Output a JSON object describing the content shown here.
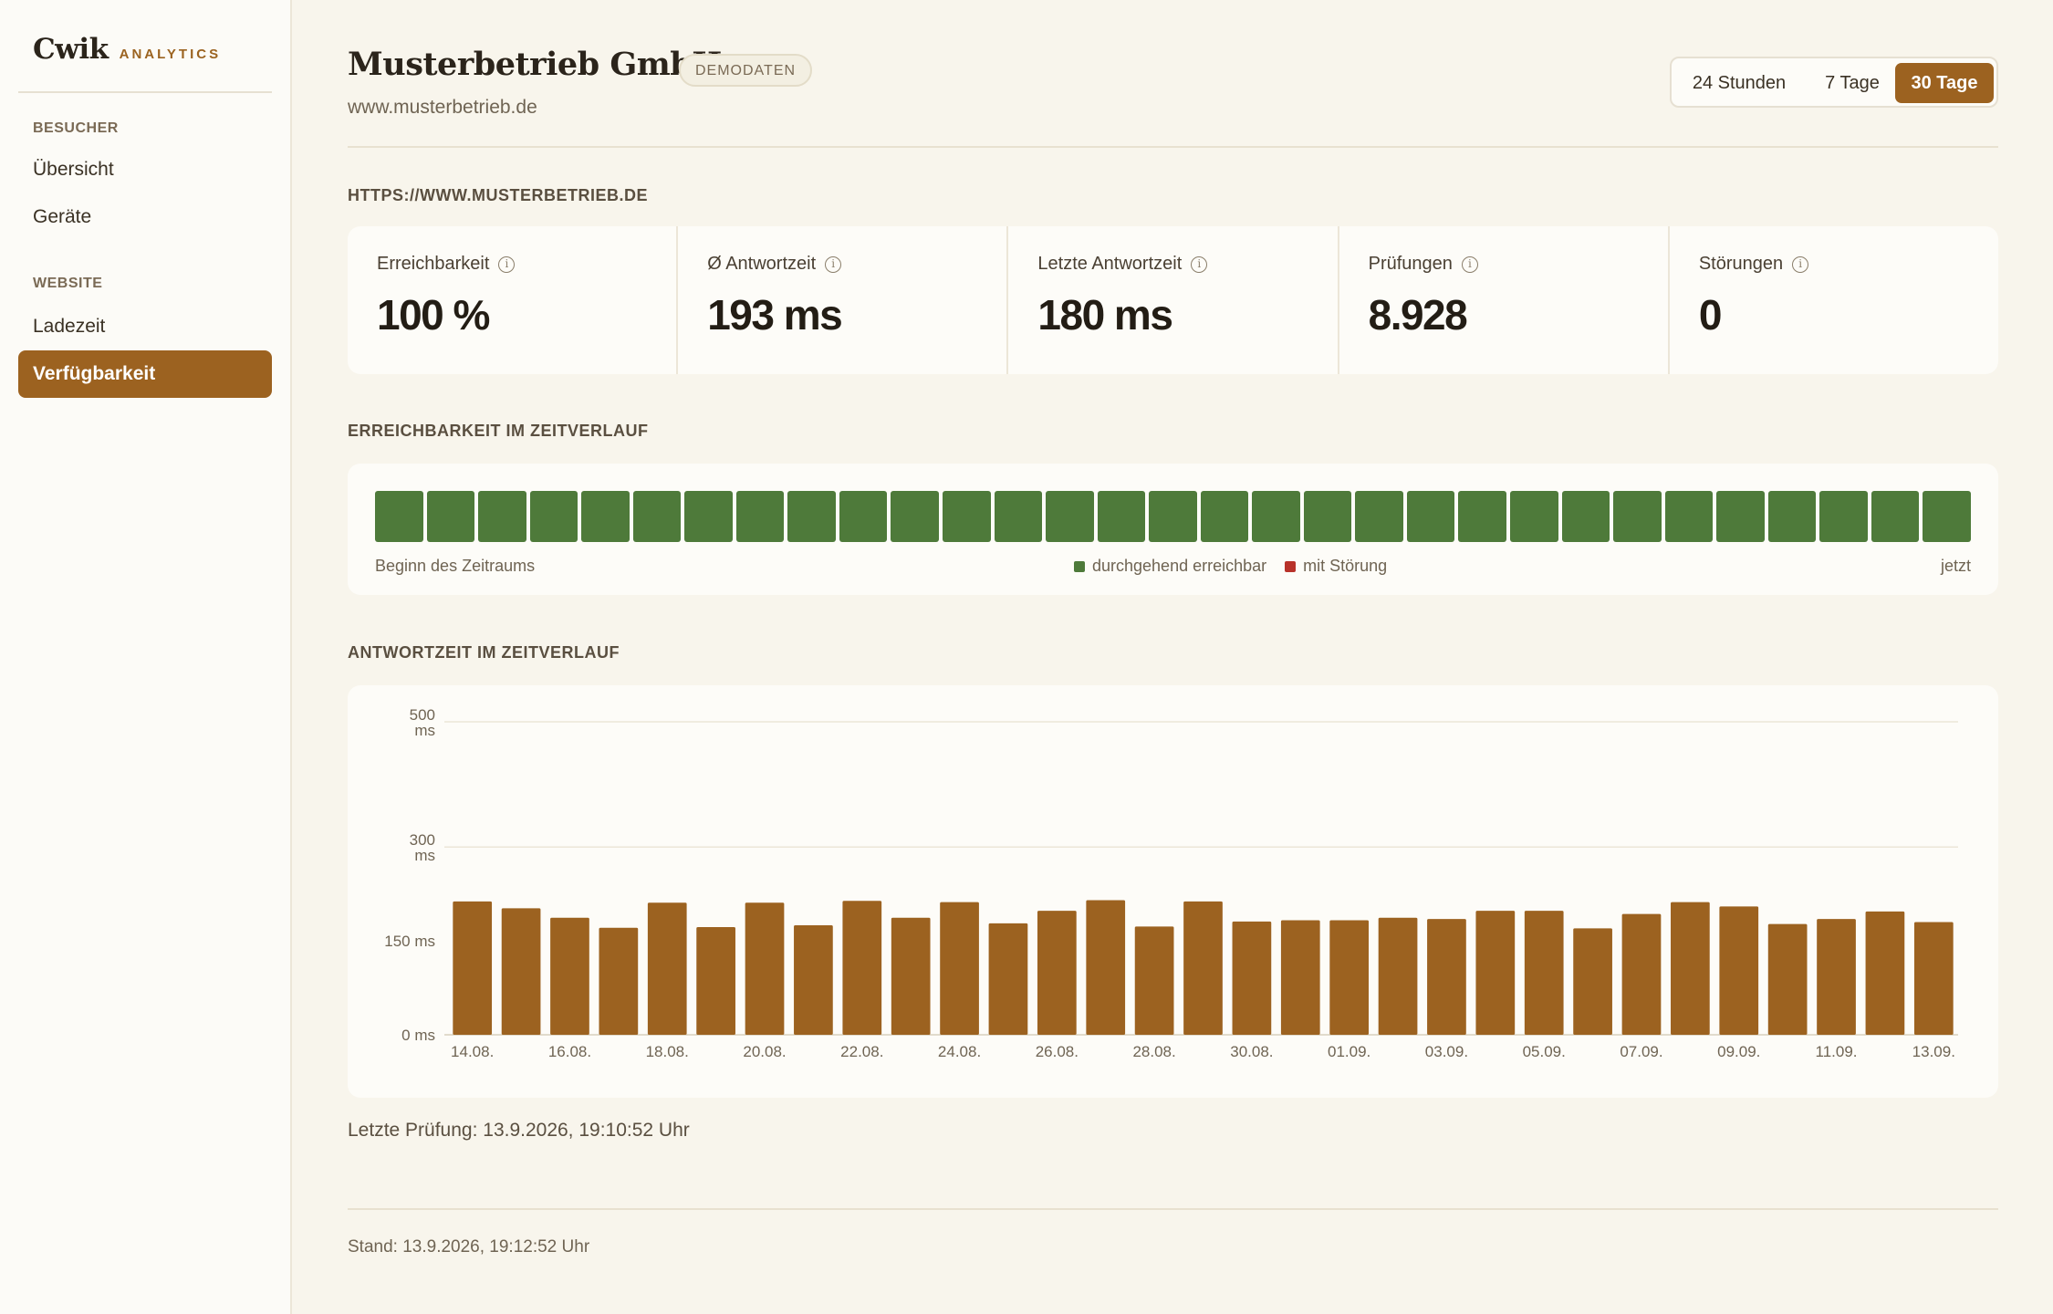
{
  "brand": {
    "name": "Cwik",
    "sub": "ANALYTICS"
  },
  "sidebar": {
    "sections": [
      {
        "label": "BESUCHER",
        "items": [
          {
            "label": "Übersicht",
            "active": false
          },
          {
            "label": "Geräte",
            "active": false
          }
        ]
      },
      {
        "label": "WEBSITE",
        "items": [
          {
            "label": "Ladezeit",
            "active": false
          },
          {
            "label": "Verfügbarkeit",
            "active": true
          }
        ]
      }
    ]
  },
  "header": {
    "title": "Musterbetrieb GmbH",
    "badge": "DEMODATEN",
    "url": "www.musterbetrieb.de",
    "ranges": [
      {
        "label": "24 Stunden",
        "active": false
      },
      {
        "label": "7 Tage",
        "active": false
      },
      {
        "label": "30 Tage",
        "active": true
      }
    ]
  },
  "monitor": {
    "heading": "HTTPS://WWW.MUSTERBETRIEB.DE",
    "metrics": [
      {
        "label": "Erreichbarkeit",
        "value": "100 %"
      },
      {
        "label": "Ø Antwortzeit",
        "value": "193 ms"
      },
      {
        "label": "Letzte Antwortzeit",
        "value": "180 ms"
      },
      {
        "label": "Prüfungen",
        "value": "8.928"
      },
      {
        "label": "Störungen",
        "value": "0"
      }
    ]
  },
  "availability": {
    "heading": "ERREICHBARKEIT IM ZEITVERLAUF",
    "start_label": "Beginn des Zeitraums",
    "end_label": "jetzt",
    "legend": [
      {
        "label": "durchgehend erreichbar",
        "color": "#4e7a3a"
      },
      {
        "label": "mit Störung",
        "color": "#b8322a"
      }
    ],
    "days": [
      1,
      1,
      1,
      1,
      1,
      1,
      1,
      1,
      1,
      1,
      1,
      1,
      1,
      1,
      1,
      1,
      1,
      1,
      1,
      1,
      1,
      1,
      1,
      1,
      1,
      1,
      1,
      1,
      1,
      1,
      1
    ],
    "ok_color": "#4e7a3a"
  },
  "response": {
    "heading": "ANTWORTZEIT IM ZEITVERLAUF",
    "chart_data": {
      "type": "bar",
      "ylim": [
        0,
        500
      ],
      "yticks": [
        {
          "value": 0,
          "label": "0 ms"
        },
        {
          "value": 150,
          "label": "150 ms"
        },
        {
          "value": 300,
          "label": "300\nms"
        },
        {
          "value": 500,
          "label": "500\nms"
        }
      ],
      "categories": [
        "14.08.",
        "15.08.",
        "16.08.",
        "17.08.",
        "18.08.",
        "19.08.",
        "20.08.",
        "21.08.",
        "22.08.",
        "23.08.",
        "24.08.",
        "25.08.",
        "26.08.",
        "27.08.",
        "28.08.",
        "29.08.",
        "30.08.",
        "31.08.",
        "01.09.",
        "02.09.",
        "03.09.",
        "04.09.",
        "05.09.",
        "06.09.",
        "07.09.",
        "08.09.",
        "09.09.",
        "10.09.",
        "11.09.",
        "12.09.",
        "13.09."
      ],
      "visible_tick_labels": [
        "14.08.",
        "16.08.",
        "18.08.",
        "20.08.",
        "22.08.",
        "24.08.",
        "26.08.",
        "28.08.",
        "30.08.",
        "01.09.",
        "03.09.",
        "05.09.",
        "07.09.",
        "09.09.",
        "11.09.",
        "13.09."
      ],
      "values": [
        213,
        202,
        187,
        171,
        211,
        172,
        211,
        175,
        214,
        187,
        212,
        178,
        198,
        215,
        173,
        213,
        181,
        183,
        183,
        187,
        185,
        198,
        198,
        170,
        193,
        212,
        205,
        177,
        185,
        197,
        180
      ],
      "color": "#9c6220",
      "grid": true
    }
  },
  "footer": {
    "last_check": "Letzte Prüfung: 13.9.2026, 19:10:52 Uhr",
    "status": "Stand: 13.9.2026, 19:12:52 Uhr"
  }
}
